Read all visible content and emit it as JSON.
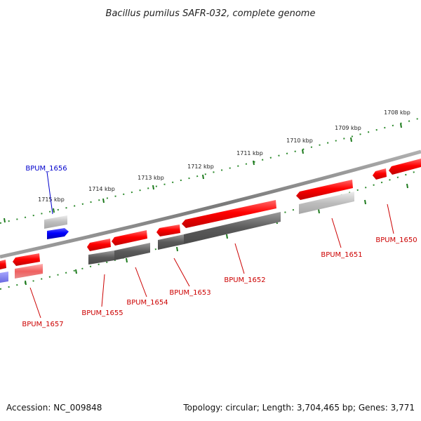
{
  "title": "Bacillus pumilus SAFR-032, complete genome",
  "footer": {
    "accession": "Accession: NC_009848",
    "summary": "Topology: circular; Length: 3,704,465 bp; Genes: 3,771"
  },
  "ticks": [
    "1708 kbp",
    "1709 kbp",
    "1710 kbp",
    "1711 kbp",
    "1712 kbp",
    "1713 kbp",
    "1714 kbp",
    "1715 kbp"
  ],
  "genes": [
    "BPUM_1650",
    "BPUM_1651",
    "BPUM_1652",
    "BPUM_1653",
    "BPUM_1654",
    "BPUM_1655",
    "BPUM_1656",
    "BPUM_1657"
  ],
  "colors": {
    "reverse_gene": "#ff0000",
    "forward_gene": "#0000ff",
    "backbone": "#888888",
    "tick_marks": "#006400",
    "label_reverse": "#cc0000",
    "label_forward": "#0000cc"
  }
}
